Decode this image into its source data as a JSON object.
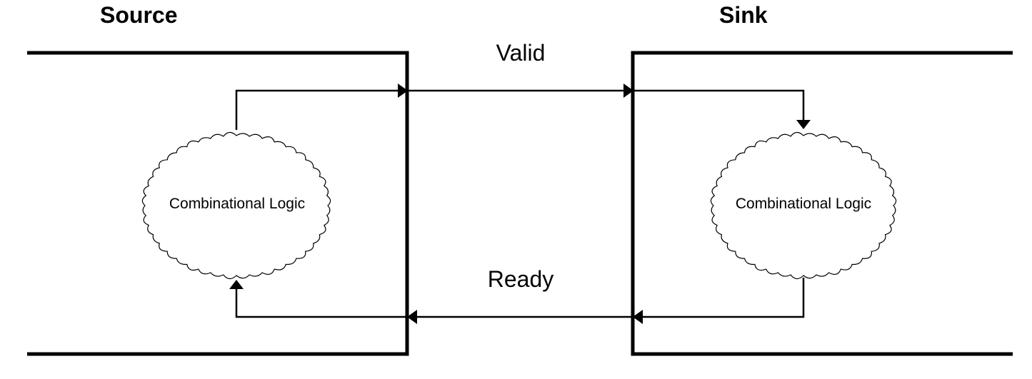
{
  "source": {
    "title": "Source",
    "logic_label": "Combinational Logic"
  },
  "sink": {
    "title": "Sink",
    "logic_label": "Combinational Logic"
  },
  "signals": {
    "valid": "Valid",
    "ready": "Ready"
  }
}
